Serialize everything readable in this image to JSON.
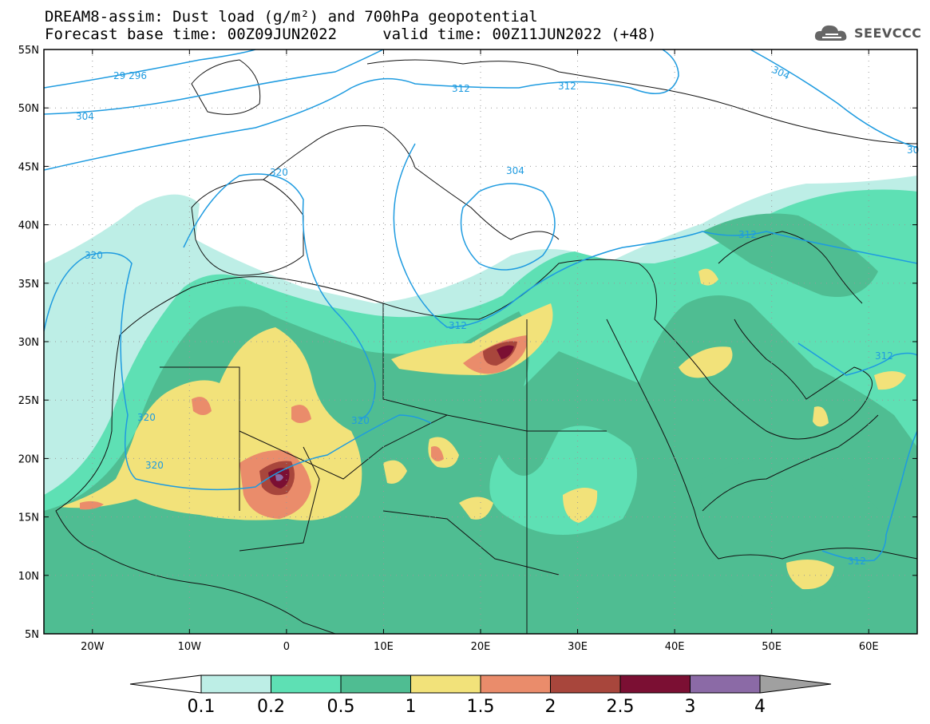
{
  "title": {
    "line1": "DREAM8-assim: Dust load (g/m²) and 700hPa geopotential",
    "line2": "Forecast base time: 00Z09JUN2022     valid time: 00Z11JUN2022 (+48)"
  },
  "logo": {
    "icon": "cloud-icon",
    "text": "SEEVCCC"
  },
  "map": {
    "lon_range": [
      -25,
      65
    ],
    "lat_range": [
      5,
      55
    ],
    "lon_ticks": [
      "20W",
      "10W",
      "0",
      "10E",
      "20E",
      "30E",
      "40E",
      "50E",
      "60E"
    ],
    "lat_ticks": [
      "55N",
      "50N",
      "45N",
      "40N",
      "35N",
      "30N",
      "25N",
      "20N",
      "15N",
      "10N",
      "5N"
    ],
    "grid": "dotted"
  },
  "contours": {
    "color": "#1e9be0",
    "labels": [
      "29 296",
      "304",
      "312",
      "312",
      "30",
      "320",
      "304",
      "312",
      "320",
      "320",
      "320",
      "312",
      "312",
      "312",
      "304"
    ]
  },
  "colorbar": {
    "ticks": [
      "0.1",
      "0.2",
      "0.5",
      "1",
      "1.5",
      "2",
      "2.5",
      "3",
      "4"
    ],
    "colors": [
      "#bdeee6",
      "#5ee0b4",
      "#4fbd92",
      "#f2e27a",
      "#ea8c6b",
      "#a8463c",
      "#7b0f33",
      "#8b6aa6"
    ],
    "under_color": "#ffffff",
    "over_color": "#a0a0a0"
  }
}
